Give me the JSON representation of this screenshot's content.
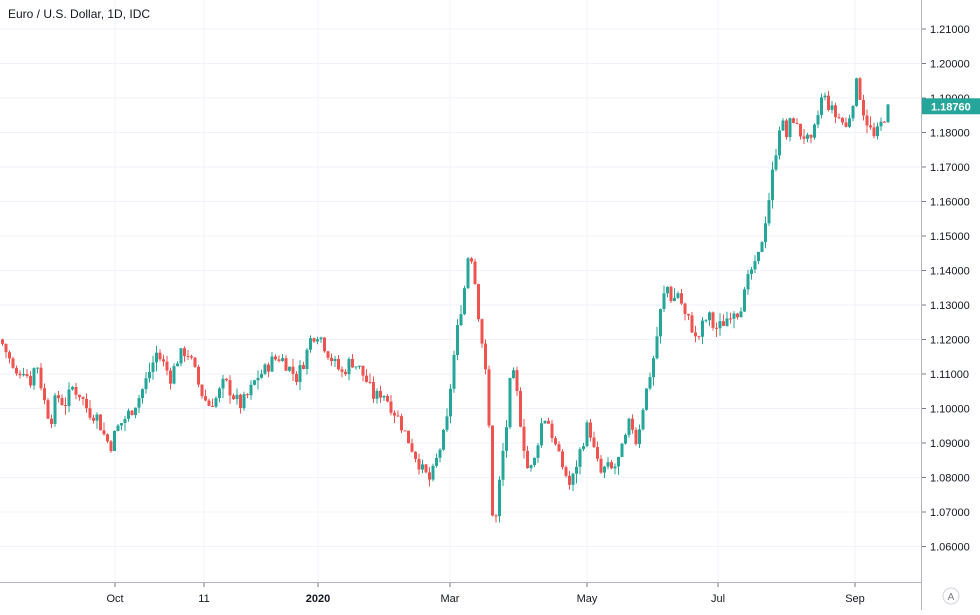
{
  "chart_data": {
    "type": "candlestick",
    "title": "Euro / U.S. Dollar, 1D, IDC",
    "x_axis": {
      "ticks": [
        "Oct",
        "11",
        "2020",
        "Mar",
        "May",
        "Jul",
        "Sep"
      ],
      "bold_ticks": [
        "2020"
      ]
    },
    "y_axis": {
      "ticks": [
        "1.21000",
        "1.20000",
        "1.19000",
        "1.18000",
        "1.17000",
        "1.16000",
        "1.15000",
        "1.14000",
        "1.13000",
        "1.12000",
        "1.11000",
        "1.10000",
        "1.09000",
        "1.08000",
        "1.07000",
        "1.06000"
      ],
      "range": [
        1.0555,
        1.2155
      ],
      "position": "right"
    },
    "last_price": "1.18760",
    "grid": true,
    "colors": {
      "up": "#26a69a",
      "down": "#ef5350",
      "grid": "#f0f3fa",
      "text": "#131722",
      "badge": "#26a69a"
    },
    "path": [
      [
        0,
        1.12
      ],
      [
        8,
        1.115
      ],
      [
        15,
        1.109
      ],
      [
        22,
        1.112
      ],
      [
        30,
        1.108
      ],
      [
        36,
        1.114
      ],
      [
        43,
        1.103
      ],
      [
        50,
        1.096
      ],
      [
        56,
        1.104
      ],
      [
        64,
        1.101
      ],
      [
        72,
        1.106
      ],
      [
        80,
        1.104
      ],
      [
        88,
        1.099
      ],
      [
        96,
        1.098
      ],
      [
        104,
        1.092
      ],
      [
        110,
        1.089
      ],
      [
        116,
        1.094
      ],
      [
        124,
        1.097
      ],
      [
        132,
        1.1
      ],
      [
        140,
        1.104
      ],
      [
        148,
        1.11
      ],
      [
        156,
        1.116
      ],
      [
        163,
        1.113
      ],
      [
        170,
        1.109
      ],
      [
        178,
        1.115
      ],
      [
        186,
        1.117
      ],
      [
        193,
        1.112
      ],
      [
        200,
        1.105
      ],
      [
        208,
        1.101
      ],
      [
        216,
        1.103
      ],
      [
        224,
        1.108
      ],
      [
        232,
        1.104
      ],
      [
        240,
        1.101
      ],
      [
        248,
        1.104
      ],
      [
        256,
        1.109
      ],
      [
        264,
        1.111
      ],
      [
        272,
        1.114
      ],
      [
        280,
        1.115
      ],
      [
        288,
        1.112
      ],
      [
        296,
        1.109
      ],
      [
        304,
        1.114
      ],
      [
        311,
        1.121
      ],
      [
        318,
        1.122
      ],
      [
        326,
        1.117
      ],
      [
        334,
        1.113
      ],
      [
        342,
        1.11
      ],
      [
        350,
        1.114
      ],
      [
        358,
        1.112
      ],
      [
        366,
        1.108
      ],
      [
        374,
        1.103
      ],
      [
        382,
        1.105
      ],
      [
        390,
        1.101
      ],
      [
        398,
        1.097
      ],
      [
        406,
        1.092
      ],
      [
        414,
        1.087
      ],
      [
        422,
        1.082
      ],
      [
        430,
        1.079
      ],
      [
        438,
        1.087
      ],
      [
        446,
        1.095
      ],
      [
        452,
        1.112
      ],
      [
        458,
        1.125
      ],
      [
        464,
        1.135
      ],
      [
        469,
        1.148
      ],
      [
        474,
        1.138
      ],
      [
        479,
        1.125
      ],
      [
        484,
        1.114
      ],
      [
        488,
        1.098
      ],
      [
        492,
        1.07
      ],
      [
        496,
        1.068
      ],
      [
        500,
        1.082
      ],
      [
        506,
        1.095
      ],
      [
        511,
        1.112
      ],
      [
        516,
        1.105
      ],
      [
        522,
        1.092
      ],
      [
        528,
        1.081
      ],
      [
        534,
        1.085
      ],
      [
        540,
        1.095
      ],
      [
        546,
        1.098
      ],
      [
        552,
        1.092
      ],
      [
        558,
        1.086
      ],
      [
        564,
        1.082
      ],
      [
        570,
        1.077
      ],
      [
        576,
        1.084
      ],
      [
        582,
        1.09
      ],
      [
        588,
        1.096
      ],
      [
        594,
        1.087
      ],
      [
        600,
        1.081
      ],
      [
        606,
        1.083
      ],
      [
        612,
        1.082
      ],
      [
        618,
        1.085
      ],
      [
        624,
        1.09
      ],
      [
        630,
        1.097
      ],
      [
        636,
        1.09
      ],
      [
        642,
        1.1
      ],
      [
        648,
        1.108
      ],
      [
        654,
        1.116
      ],
      [
        660,
        1.128
      ],
      [
        666,
        1.136
      ],
      [
        672,
        1.131
      ],
      [
        678,
        1.134
      ],
      [
        684,
        1.127
      ],
      [
        690,
        1.125
      ],
      [
        696,
        1.119
      ],
      [
        702,
        1.124
      ],
      [
        708,
        1.127
      ],
      [
        714,
        1.123
      ],
      [
        720,
        1.124
      ],
      [
        726,
        1.126
      ],
      [
        732,
        1.129
      ],
      [
        738,
        1.128
      ],
      [
        744,
        1.133
      ],
      [
        750,
        1.14
      ],
      [
        756,
        1.141
      ],
      [
        762,
        1.15
      ],
      [
        768,
        1.16
      ],
      [
        774,
        1.172
      ],
      [
        780,
        1.184
      ],
      [
        786,
        1.179
      ],
      [
        792,
        1.185
      ],
      [
        798,
        1.18
      ],
      [
        804,
        1.179
      ],
      [
        810,
        1.176
      ],
      [
        816,
        1.183
      ],
      [
        822,
        1.191
      ],
      [
        828,
        1.188
      ],
      [
        834,
        1.185
      ],
      [
        840,
        1.184
      ],
      [
        846,
        1.181
      ],
      [
        852,
        1.189
      ],
      [
        857,
        1.195
      ],
      [
        862,
        1.187
      ],
      [
        868,
        1.182
      ],
      [
        874,
        1.178
      ],
      [
        880,
        1.182
      ],
      [
        886,
        1.186
      ],
      [
        890,
        1.1876
      ]
    ]
  }
}
